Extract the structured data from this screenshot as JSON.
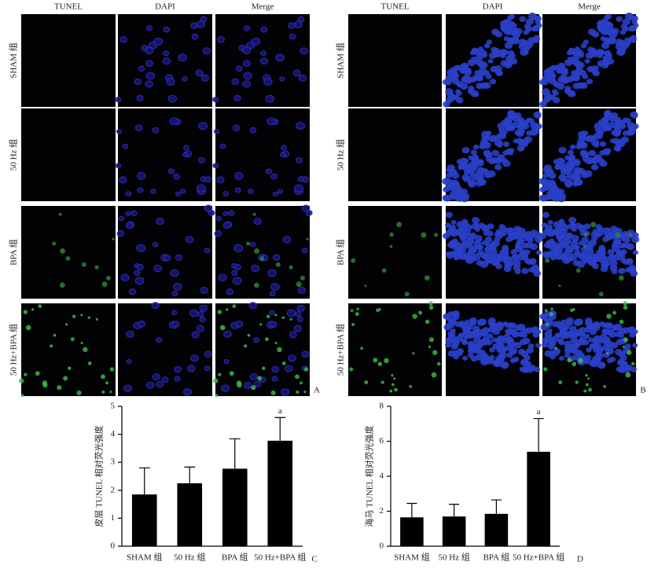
{
  "panels": [
    {
      "letter": "A",
      "columns": [
        "TUNEL",
        "DAPI",
        "Merge"
      ],
      "rows": [
        "SHAM 组",
        "50 Hz 组",
        "BPA 组",
        "50 Hz+BPA 组"
      ]
    },
    {
      "letter": "B",
      "columns": [
        "TUNEL",
        "DAPI",
        "Merge"
      ],
      "rows": [
        "SHAM 组",
        "50 Hz 组",
        "BPA 组",
        "50 Hz+BPA 组"
      ]
    }
  ],
  "chart_data": [
    {
      "type": "bar",
      "letter": "C",
      "y_label": "皮层 TUNEL 相对荧光强度",
      "categories": [
        "SHAM 组",
        "50 Hz 组",
        "BPA 组",
        "50 Hz+BPA 组"
      ],
      "values": [
        1.85,
        2.25,
        2.77,
        3.77
      ],
      "errors": [
        0.95,
        0.58,
        1.07,
        0.83
      ],
      "significance": [
        null,
        null,
        null,
        "a"
      ],
      "color": "#000000",
      "ylim": [
        0,
        5
      ],
      "yticks": [
        0,
        1,
        2,
        3,
        4,
        5
      ]
    },
    {
      "type": "bar",
      "letter": "D",
      "y_label": "海马 TUNEL 相对荧光强度",
      "categories": [
        "SHAM 组",
        "50 Hz 组",
        "BPA 组",
        "50 Hz+BPA 组"
      ],
      "values": [
        1.65,
        1.7,
        1.85,
        5.4
      ],
      "errors": [
        0.8,
        0.7,
        0.8,
        1.9
      ],
      "significance": [
        null,
        null,
        null,
        "a"
      ],
      "color": "#000000",
      "ylim": [
        0,
        8
      ],
      "yticks": [
        0,
        2,
        4,
        6,
        8
      ]
    }
  ]
}
